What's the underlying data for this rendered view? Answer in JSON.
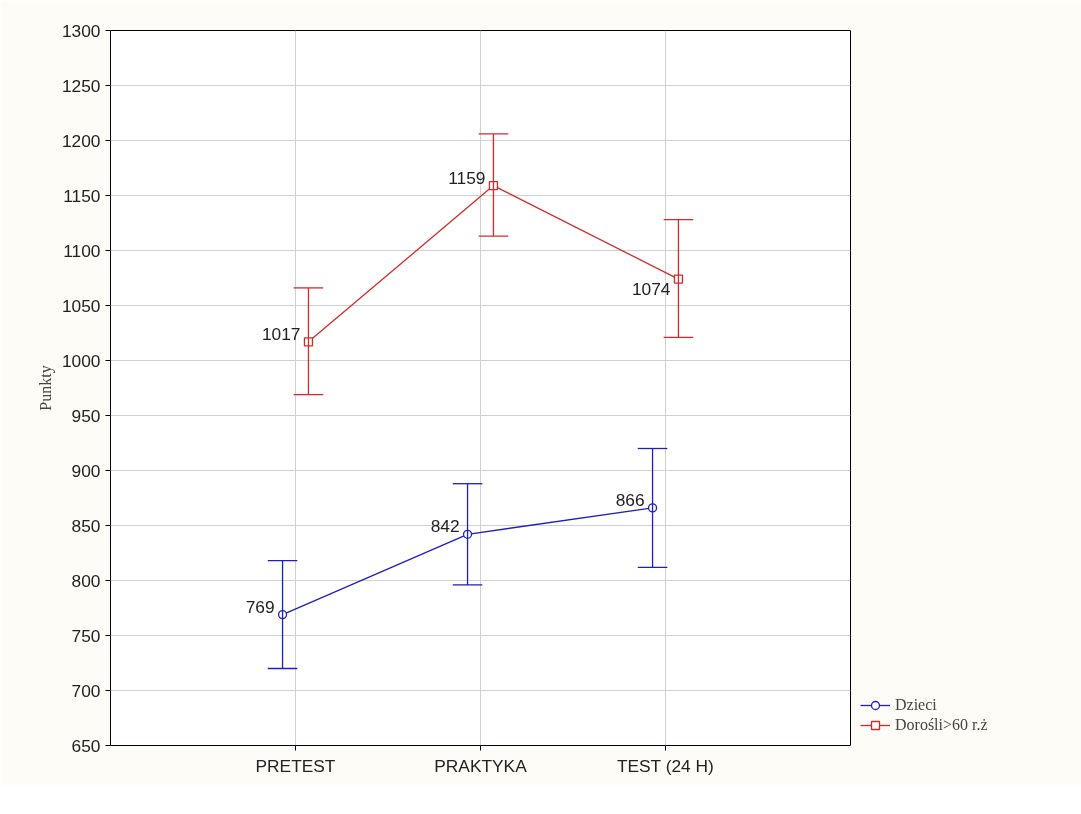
{
  "chart_data": {
    "type": "line",
    "ylabel": "Punkty",
    "categories": [
      "PRETEST",
      "PRAKTYKA",
      "TEST (24 H)"
    ],
    "series": [
      {
        "name": "Dzieci",
        "color": "#1f1fbf",
        "marker": "circle",
        "values": [
          769,
          842,
          866
        ],
        "errors": [
          [
            720,
            818
          ],
          [
            796,
            888
          ],
          [
            812,
            920
          ]
        ]
      },
      {
        "name": "Dorośli>60 r.ż",
        "color": "#d42a2a",
        "marker": "square",
        "values": [
          1017,
          1159,
          1074
        ],
        "errors": [
          [
            969,
            1066
          ],
          [
            1113,
            1206
          ],
          [
            1021,
            1128
          ]
        ]
      }
    ],
    "ylim": [
      650,
      1300
    ],
    "yticks": [
      650,
      700,
      750,
      800,
      850,
      900,
      950,
      1000,
      1050,
      1100,
      1150,
      1200,
      1250,
      1300
    ],
    "grid": true,
    "legend": "bottom right",
    "data_labels": true
  }
}
